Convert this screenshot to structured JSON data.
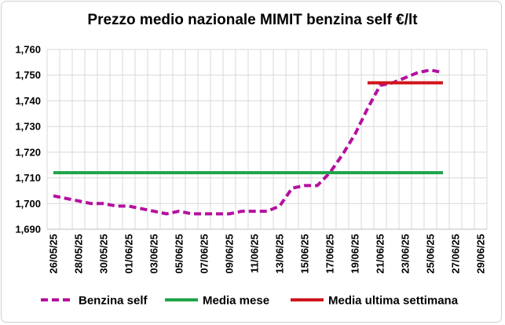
{
  "chart_data": {
    "type": "line",
    "title": "Prezzo medio nazionale MIMIT benzina self €/lt",
    "xlabel": "",
    "ylabel": "",
    "ylim": [
      1.69,
      1.76
    ],
    "y_ticks": [
      "1,690",
      "1,700",
      "1,710",
      "1,720",
      "1,730",
      "1,740",
      "1,750",
      "1,760"
    ],
    "x_ticks": [
      "26/05/25",
      "28/05/25",
      "30/05/25",
      "01/06/25",
      "03/06/25",
      "05/06/25",
      "07/06/25",
      "09/06/25",
      "11/06/25",
      "13/06/25",
      "15/06/25",
      "17/06/25",
      "19/06/25",
      "21/06/25",
      "23/06/25",
      "25/06/25",
      "27/06/25",
      "29/06/25"
    ],
    "x_dates": [
      "26/05",
      "27/05",
      "28/05",
      "29/05",
      "30/05",
      "31/05",
      "01/06",
      "02/06",
      "03/06",
      "04/06",
      "05/06",
      "06/06",
      "07/06",
      "08/06",
      "09/06",
      "10/06",
      "11/06",
      "12/06",
      "13/06",
      "14/06",
      "15/06",
      "16/06",
      "17/06",
      "18/06",
      "19/06",
      "20/06",
      "21/06",
      "22/06",
      "23/06",
      "24/06",
      "25/06",
      "26/06",
      "27/06",
      "28/06",
      "29/06"
    ],
    "grid": true,
    "legend_position": "bottom",
    "series": [
      {
        "name": "Benzina self",
        "color": "#b5109f",
        "style": "dashed",
        "x": [
          "26/05",
          "27/05",
          "28/05",
          "29/05",
          "30/05",
          "31/05",
          "01/06",
          "02/06",
          "03/06",
          "04/06",
          "05/06",
          "06/06",
          "07/06",
          "08/06",
          "09/06",
          "10/06",
          "11/06",
          "12/06",
          "13/06",
          "14/06",
          "15/06",
          "16/06",
          "17/06",
          "18/06",
          "19/06",
          "20/06",
          "21/06",
          "22/06",
          "23/06",
          "24/06",
          "25/06",
          "26/06"
        ],
        "values": [
          1.703,
          1.702,
          1.701,
          1.7,
          1.7,
          1.699,
          1.699,
          1.698,
          1.697,
          1.696,
          1.697,
          1.696,
          1.696,
          1.696,
          1.696,
          1.697,
          1.697,
          1.697,
          1.699,
          1.706,
          1.707,
          1.707,
          1.712,
          1.719,
          1.727,
          1.737,
          1.746,
          1.747,
          1.749,
          1.751,
          1.752,
          1.751
        ]
      },
      {
        "name": "Media mese",
        "color": "#1fa64a",
        "style": "solid",
        "x": [
          "26/05",
          "26/06"
        ],
        "values": [
          1.712,
          1.712
        ]
      },
      {
        "name": "Media ultima settimana",
        "color": "#d0151b",
        "style": "solid",
        "x": [
          "20/06",
          "26/06"
        ],
        "values": [
          1.747,
          1.747
        ]
      }
    ]
  }
}
